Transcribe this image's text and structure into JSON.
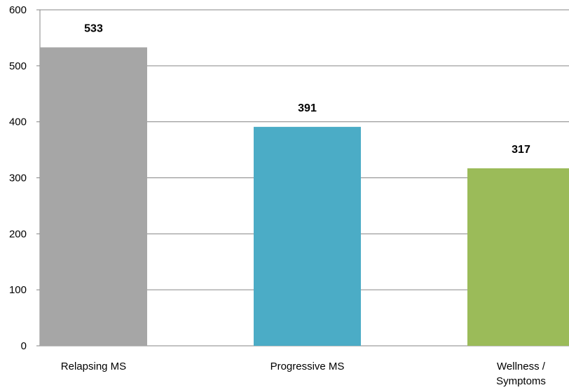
{
  "chart_data": {
    "type": "bar",
    "categories": [
      "Relapsing MS",
      "Progressive MS",
      "Wellness / Symptoms"
    ],
    "category_label_lines": [
      [
        "Relapsing MS"
      ],
      [
        "Progressive MS"
      ],
      [
        "Wellness /",
        "Symptoms"
      ]
    ],
    "values": [
      533,
      391,
      317
    ],
    "data_labels": [
      "533",
      "391",
      "317"
    ],
    "bar_colors": [
      "#a6a6a6",
      "#4bacc6",
      "#9bbb59"
    ],
    "title": "",
    "xlabel": "",
    "ylabel": "",
    "ylim": [
      0,
      600
    ],
    "yticks": [
      0,
      100,
      200,
      300,
      400,
      500,
      600
    ],
    "ytick_labels": [
      "0",
      "100",
      "200",
      "300",
      "400",
      "500",
      "600"
    ],
    "grid": true,
    "legend": "none"
  }
}
